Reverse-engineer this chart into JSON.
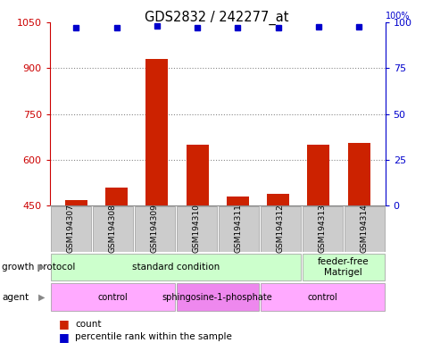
{
  "title": "GDS2832 / 242277_at",
  "samples": [
    "GSM194307",
    "GSM194308",
    "GSM194309",
    "GSM194310",
    "GSM194311",
    "GSM194312",
    "GSM194313",
    "GSM194314"
  ],
  "counts": [
    470,
    510,
    930,
    650,
    480,
    490,
    650,
    655
  ],
  "percentiles": [
    97,
    97,
    98,
    97,
    97,
    97,
    97.5,
    97.5
  ],
  "ylim_left": [
    450,
    1050
  ],
  "ylim_right": [
    0,
    100
  ],
  "yticks_left": [
    450,
    600,
    750,
    900,
    1050
  ],
  "yticks_right": [
    0,
    25,
    50,
    75,
    100
  ],
  "bar_color": "#cc2200",
  "dot_color": "#0000cc",
  "growth_protocol_groups": [
    {
      "text": "standard condition",
      "start": 0,
      "end": 5,
      "color": "#ccffcc"
    },
    {
      "text": "feeder-free\nMatrigel",
      "start": 6,
      "end": 7,
      "color": "#ccffcc"
    }
  ],
  "agent_groups": [
    {
      "text": "control",
      "start": 0,
      "end": 2,
      "color": "#ffaaff"
    },
    {
      "text": "sphingosine-1-phosphate",
      "start": 3,
      "end": 4,
      "color": "#ee88ee"
    },
    {
      "text": "control",
      "start": 5,
      "end": 7,
      "color": "#ffaaff"
    }
  ],
  "legend_count_label": "count",
  "legend_pct_label": "percentile rank within the sample",
  "grid_color": "#888888",
  "sample_box_color": "#cccccc",
  "title_color": "#000000",
  "left_axis_color": "#cc0000",
  "right_axis_color": "#0000cc",
  "gp_label": "growth protocol",
  "agent_label": "agent"
}
